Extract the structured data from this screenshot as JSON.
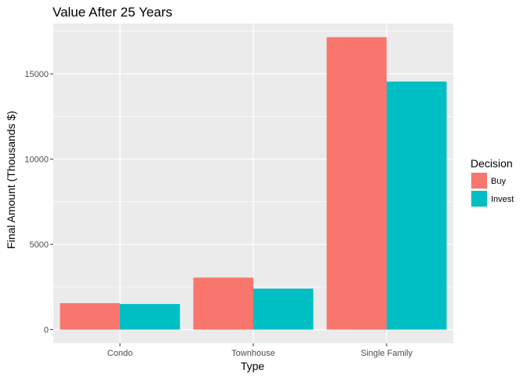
{
  "chart_data": {
    "type": "bar",
    "title": "Value After 25 Years",
    "xlabel": "Type",
    "ylabel": "Final Amount (Thousands $)",
    "categories": [
      "Condo",
      "Townhouse",
      "Single Family"
    ],
    "series": [
      {
        "name": "Buy",
        "values": [
          1550,
          3050,
          17150
        ],
        "color": "#F8766D"
      },
      {
        "name": "Invest",
        "values": [
          1500,
          2400,
          14550
        ],
        "color": "#00BFC4"
      }
    ],
    "ylim": [
      -800,
      17950
    ],
    "yticks": [
      0,
      5000,
      10000,
      15000
    ],
    "ytick_labels": [
      "0",
      "5000",
      "10000",
      "15000"
    ],
    "grid": true,
    "panel_background": "#EBEBEB",
    "legend": {
      "title": "Decision",
      "position": "right"
    }
  }
}
